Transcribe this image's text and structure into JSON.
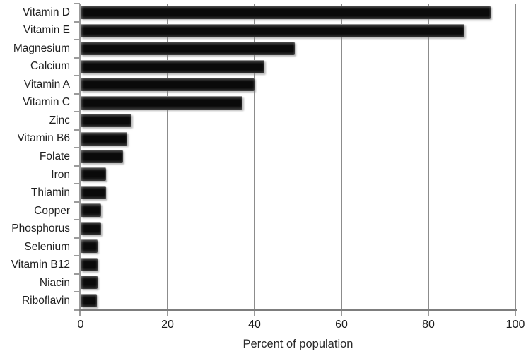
{
  "figure": {
    "background": "#ffffff"
  },
  "chart_data": {
    "type": "bar",
    "orientation": "horizontal",
    "title": "",
    "xlabel": "Percent of population",
    "ylabel": "",
    "xlim": [
      0,
      100
    ],
    "x_ticks": [
      0,
      20,
      40,
      60,
      80,
      100
    ],
    "grid": "vertical",
    "legend": "none",
    "bar_color": "#0a0a0a",
    "gridline_color": "#8c8c8c",
    "axis_color": "#9b9b9b",
    "categories": [
      "Vitamin D",
      "Vitamin E",
      "Magnesium",
      "Calcium",
      "Vitamin A",
      "Vitamin C",
      "Zinc",
      "Vitamin B6",
      "Folate",
      "Iron",
      "Thiamin",
      "Copper",
      "Phosphorus",
      "Selenium",
      "Vitamin B12",
      "Niacin",
      "Riboflavin"
    ],
    "values": [
      94.3,
      88.3,
      49.2,
      42.3,
      40.0,
      37.3,
      11.7,
      10.7,
      9.7,
      5.8,
      5.8,
      4.7,
      4.7,
      3.9,
      3.9,
      3.9,
      3.7
    ]
  }
}
